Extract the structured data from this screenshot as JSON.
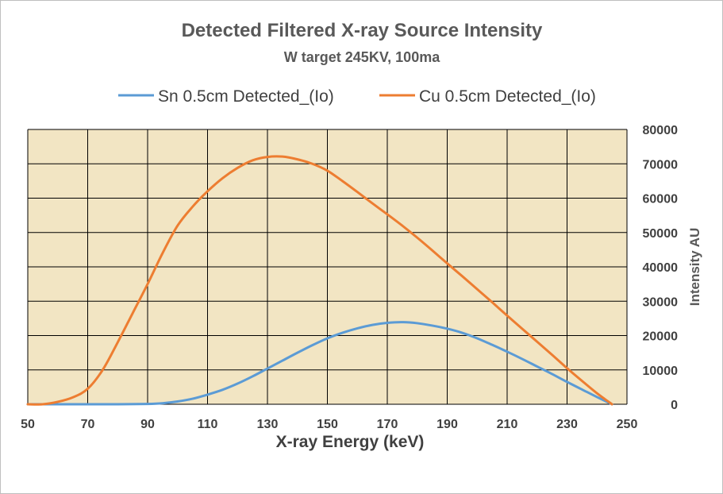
{
  "chart_data": {
    "type": "line",
    "title": "Detected Filtered X-ray Source Intensity",
    "subtitle": "W target 245KV, 100ma",
    "xlabel": "X-ray Energy (keV)",
    "ylabel": "Intensity AU",
    "xlim": [
      50,
      250
    ],
    "ylim": [
      0,
      80000
    ],
    "x_ticks": [
      50,
      70,
      90,
      110,
      130,
      150,
      170,
      190,
      210,
      230,
      250
    ],
    "y_ticks": [
      0,
      10000,
      20000,
      30000,
      40000,
      50000,
      60000,
      70000,
      80000
    ],
    "grid": true,
    "legend_position": "top",
    "plot_background": "#f2e5c3",
    "grid_color": "#000000",
    "series": [
      {
        "name": "Sn 0.5cm Detected_(Io)",
        "color": "#5b9bd5",
        "x": [
          50,
          60,
          70,
          80,
          90,
          95,
          100,
          105,
          110,
          115,
          120,
          125,
          130,
          135,
          140,
          145,
          150,
          155,
          160,
          165,
          170,
          175,
          180,
          185,
          190,
          195,
          200,
          205,
          210,
          215,
          220,
          225,
          230,
          235,
          240,
          245
        ],
        "y": [
          0,
          0,
          0,
          0,
          100,
          300,
          800,
          1600,
          2800,
          4200,
          6000,
          8100,
          10400,
          12700,
          15000,
          17200,
          19200,
          20800,
          22100,
          23100,
          23700,
          23900,
          23600,
          22900,
          22000,
          20800,
          19200,
          17300,
          15300,
          13200,
          11000,
          8800,
          6500,
          4300,
          2100,
          0
        ]
      },
      {
        "name": "Cu 0.5cm Detected_(Io)",
        "color": "#ed7d31",
        "x": [
          50,
          55,
          60,
          65,
          70,
          75,
          80,
          85,
          90,
          95,
          100,
          105,
          110,
          115,
          120,
          125,
          130,
          135,
          140,
          145,
          150,
          155,
          160,
          165,
          170,
          175,
          180,
          185,
          190,
          195,
          200,
          205,
          210,
          215,
          220,
          225,
          230,
          235,
          240,
          245
        ],
        "y": [
          0,
          0,
          700,
          2000,
          4500,
          10000,
          18000,
          26500,
          35000,
          44000,
          52000,
          57500,
          62000,
          65800,
          68800,
          71000,
          72000,
          72100,
          71300,
          70000,
          68000,
          65000,
          61800,
          58500,
          55300,
          52000,
          48500,
          44800,
          41000,
          37300,
          33500,
          29700,
          25800,
          22000,
          18200,
          14400,
          10500,
          6800,
          3200,
          0
        ]
      }
    ]
  }
}
